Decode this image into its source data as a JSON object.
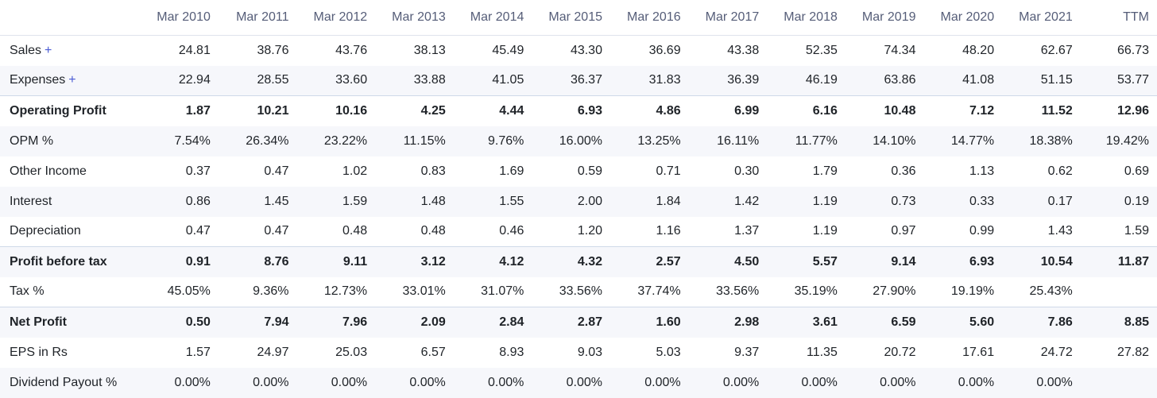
{
  "table": {
    "columns": [
      "Mar 2010",
      "Mar 2011",
      "Mar 2012",
      "Mar 2013",
      "Mar 2014",
      "Mar 2015",
      "Mar 2016",
      "Mar 2017",
      "Mar 2018",
      "Mar 2019",
      "Mar 2020",
      "Mar 2021",
      "TTM"
    ],
    "expand_symbol": "+",
    "rows": [
      {
        "label": "Sales",
        "values": [
          "24.81",
          "38.76",
          "43.76",
          "38.13",
          "45.49",
          "43.30",
          "36.69",
          "43.38",
          "52.35",
          "74.34",
          "48.20",
          "62.67",
          "66.73"
        ]
      },
      {
        "label": "Expenses",
        "values": [
          "22.94",
          "28.55",
          "33.60",
          "33.88",
          "41.05",
          "36.37",
          "31.83",
          "36.39",
          "46.19",
          "63.86",
          "41.08",
          "51.15",
          "53.77"
        ]
      },
      {
        "label": "Operating Profit",
        "values": [
          "1.87",
          "10.21",
          "10.16",
          "4.25",
          "4.44",
          "6.93",
          "4.86",
          "6.99",
          "6.16",
          "10.48",
          "7.12",
          "11.52",
          "12.96"
        ]
      },
      {
        "label": "OPM %",
        "values": [
          "7.54%",
          "26.34%",
          "23.22%",
          "11.15%",
          "9.76%",
          "16.00%",
          "13.25%",
          "16.11%",
          "11.77%",
          "14.10%",
          "14.77%",
          "18.38%",
          "19.42%"
        ]
      },
      {
        "label": "Other Income",
        "values": [
          "0.37",
          "0.47",
          "1.02",
          "0.83",
          "1.69",
          "0.59",
          "0.71",
          "0.30",
          "1.79",
          "0.36",
          "1.13",
          "0.62",
          "0.69"
        ]
      },
      {
        "label": "Interest",
        "values": [
          "0.86",
          "1.45",
          "1.59",
          "1.48",
          "1.55",
          "2.00",
          "1.84",
          "1.42",
          "1.19",
          "0.73",
          "0.33",
          "0.17",
          "0.19"
        ]
      },
      {
        "label": "Depreciation",
        "values": [
          "0.47",
          "0.47",
          "0.48",
          "0.48",
          "0.46",
          "1.20",
          "1.16",
          "1.37",
          "1.19",
          "0.97",
          "0.99",
          "1.43",
          "1.59"
        ]
      },
      {
        "label": "Profit before tax",
        "values": [
          "0.91",
          "8.76",
          "9.11",
          "3.12",
          "4.12",
          "4.32",
          "2.57",
          "4.50",
          "5.57",
          "9.14",
          "6.93",
          "10.54",
          "11.87"
        ]
      },
      {
        "label": "Tax %",
        "values": [
          "45.05%",
          "9.36%",
          "12.73%",
          "33.01%",
          "31.07%",
          "33.56%",
          "37.74%",
          "33.56%",
          "35.19%",
          "27.90%",
          "19.19%",
          "25.43%",
          ""
        ]
      },
      {
        "label": "Net Profit",
        "values": [
          "0.50",
          "7.94",
          "7.96",
          "2.09",
          "2.84",
          "2.87",
          "1.60",
          "2.98",
          "3.61",
          "6.59",
          "5.60",
          "7.86",
          "8.85"
        ]
      },
      {
        "label": "EPS in Rs",
        "values": [
          "1.57",
          "24.97",
          "25.03",
          "6.57",
          "8.93",
          "9.03",
          "5.03",
          "9.37",
          "11.35",
          "20.72",
          "17.61",
          "24.72",
          "27.82"
        ]
      },
      {
        "label": "Dividend Payout %",
        "values": [
          "0.00%",
          "0.00%",
          "0.00%",
          "0.00%",
          "0.00%",
          "0.00%",
          "0.00%",
          "0.00%",
          "0.00%",
          "0.00%",
          "0.00%",
          "0.00%",
          ""
        ]
      }
    ]
  }
}
